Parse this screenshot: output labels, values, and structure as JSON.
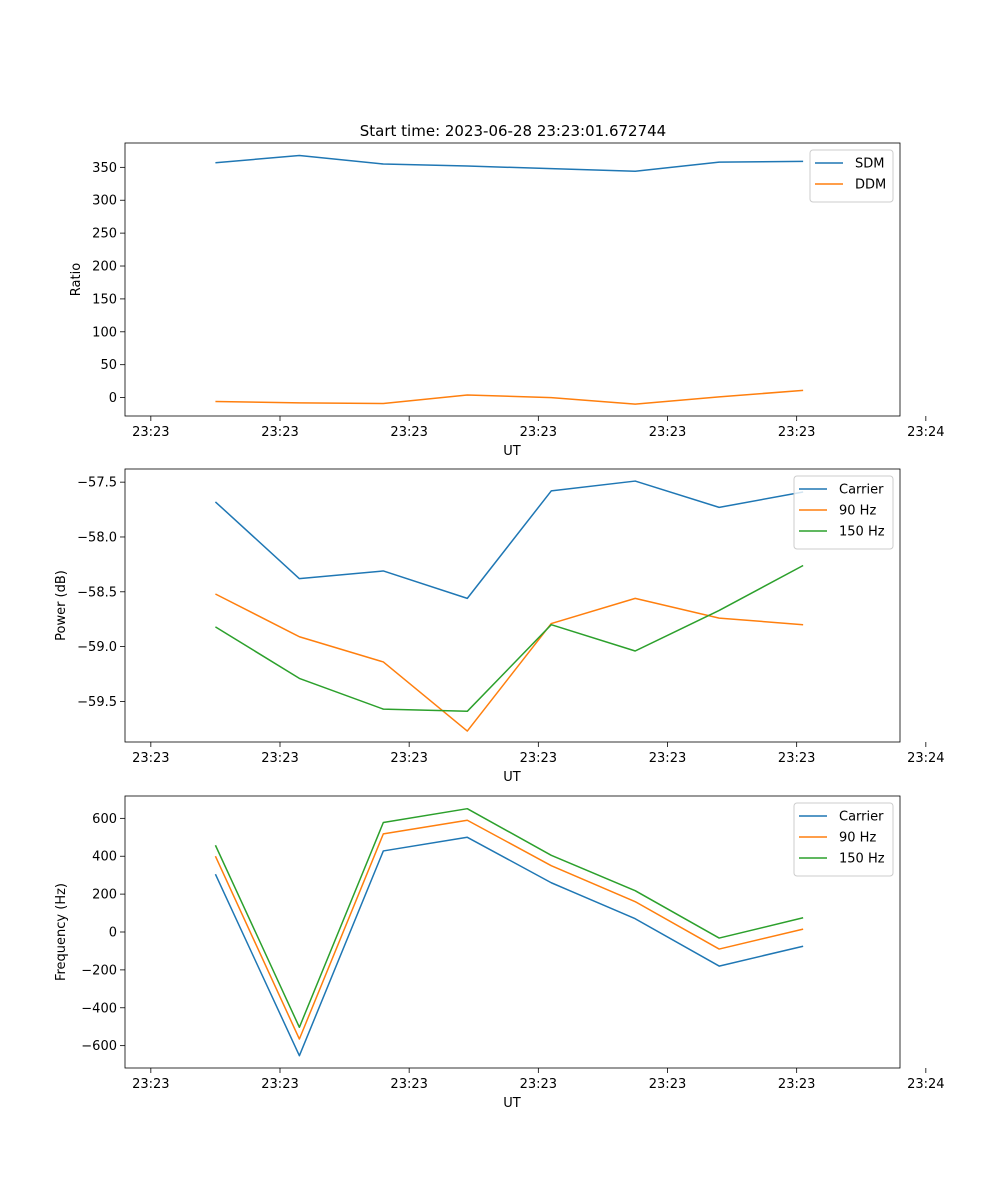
{
  "title": "Start time: 2023-06-28 23:23:01.672744",
  "colors": {
    "blue": "#1f77b4",
    "orange": "#ff7f0e",
    "green": "#2ca02c",
    "legend_border": "#cccccc"
  },
  "chart_data": [
    {
      "type": "line",
      "title": "Start time: 2023-06-28 23:23:01.672744",
      "xlabel": "UT",
      "ylabel": "Ratio",
      "xlim": [
        0,
        30
      ],
      "ylim": [
        -28,
        387
      ],
      "xticks": [
        1,
        6,
        11,
        16,
        21,
        26,
        31
      ],
      "xtick_labels": [
        "23:23",
        "23:23",
        "23:23",
        "23:23",
        "23:23",
        "23:23",
        "23:24"
      ],
      "yticks": [
        0,
        50,
        100,
        150,
        200,
        250,
        300,
        350
      ],
      "ytick_labels": [
        "0",
        "50",
        "100",
        "150",
        "200",
        "250",
        "300",
        "350"
      ],
      "grid": false,
      "legend": "top-right",
      "x": [
        3.5,
        6.75,
        10,
        13.25,
        16.5,
        19.75,
        23,
        26.25
      ],
      "series": [
        {
          "name": "SDM",
          "color": "#1f77b4",
          "values": [
            357,
            368,
            355,
            352,
            348,
            344,
            358,
            359
          ]
        },
        {
          "name": "DDM",
          "color": "#ff7f0e",
          "values": [
            -6,
            -8,
            -9,
            4,
            0,
            -10,
            1,
            11
          ]
        }
      ]
    },
    {
      "type": "line",
      "xlabel": "UT",
      "ylabel": "Power (dB)",
      "xlim": [
        0,
        30
      ],
      "ylim": [
        -59.87,
        -57.38
      ],
      "xticks": [
        1,
        6,
        11,
        16,
        21,
        26,
        31
      ],
      "xtick_labels": [
        "23:23",
        "23:23",
        "23:23",
        "23:23",
        "23:23",
        "23:23",
        "23:24"
      ],
      "yticks": [
        -59.5,
        -59.0,
        -58.5,
        -58.0,
        -57.5
      ],
      "ytick_labels": [
        "−59.5",
        "−59.0",
        "−58.5",
        "−58.0",
        "−57.5"
      ],
      "grid": false,
      "legend": "top-right",
      "x": [
        3.5,
        6.75,
        10,
        13.25,
        16.5,
        19.75,
        23,
        26.25
      ],
      "series": [
        {
          "name": "Carrier",
          "color": "#1f77b4",
          "values": [
            -57.68,
            -58.38,
            -58.31,
            -58.56,
            -57.58,
            -57.49,
            -57.73,
            -57.59
          ]
        },
        {
          "name": "90 Hz",
          "color": "#ff7f0e",
          "values": [
            -58.52,
            -58.91,
            -59.14,
            -59.77,
            -58.79,
            -58.56,
            -58.74,
            -58.8
          ]
        },
        {
          "name": "150 Hz",
          "color": "#2ca02c",
          "values": [
            -58.82,
            -59.29,
            -59.57,
            -59.59,
            -58.8,
            -59.04,
            -58.67,
            -58.26
          ]
        }
      ]
    },
    {
      "type": "line",
      "xlabel": "UT",
      "ylabel": "Frequency (Hz)",
      "xlim": [
        0,
        30
      ],
      "ylim": [
        -718,
        718
      ],
      "xticks": [
        1,
        6,
        11,
        16,
        21,
        26,
        31
      ],
      "xtick_labels": [
        "23:23",
        "23:23",
        "23:23",
        "23:23",
        "23:23",
        "23:23",
        "23:24"
      ],
      "yticks": [
        -600,
        -400,
        -200,
        0,
        200,
        400,
        600
      ],
      "ytick_labels": [
        "−600",
        "−400",
        "−200",
        "0",
        "200",
        "400",
        "600"
      ],
      "grid": false,
      "legend": "top-right",
      "x": [
        3.5,
        6.75,
        10,
        13.25,
        16.5,
        19.75,
        23,
        26.25
      ],
      "series": [
        {
          "name": "Carrier",
          "color": "#1f77b4",
          "values": [
            305,
            -653,
            428,
            500,
            260,
            70,
            -180,
            -75
          ]
        },
        {
          "name": "90 Hz",
          "color": "#ff7f0e",
          "values": [
            400,
            -565,
            518,
            590,
            350,
            160,
            -90,
            15
          ]
        },
        {
          "name": "150 Hz",
          "color": "#2ca02c",
          "values": [
            458,
            -503,
            578,
            651,
            405,
            218,
            -32,
            75
          ]
        }
      ]
    }
  ]
}
